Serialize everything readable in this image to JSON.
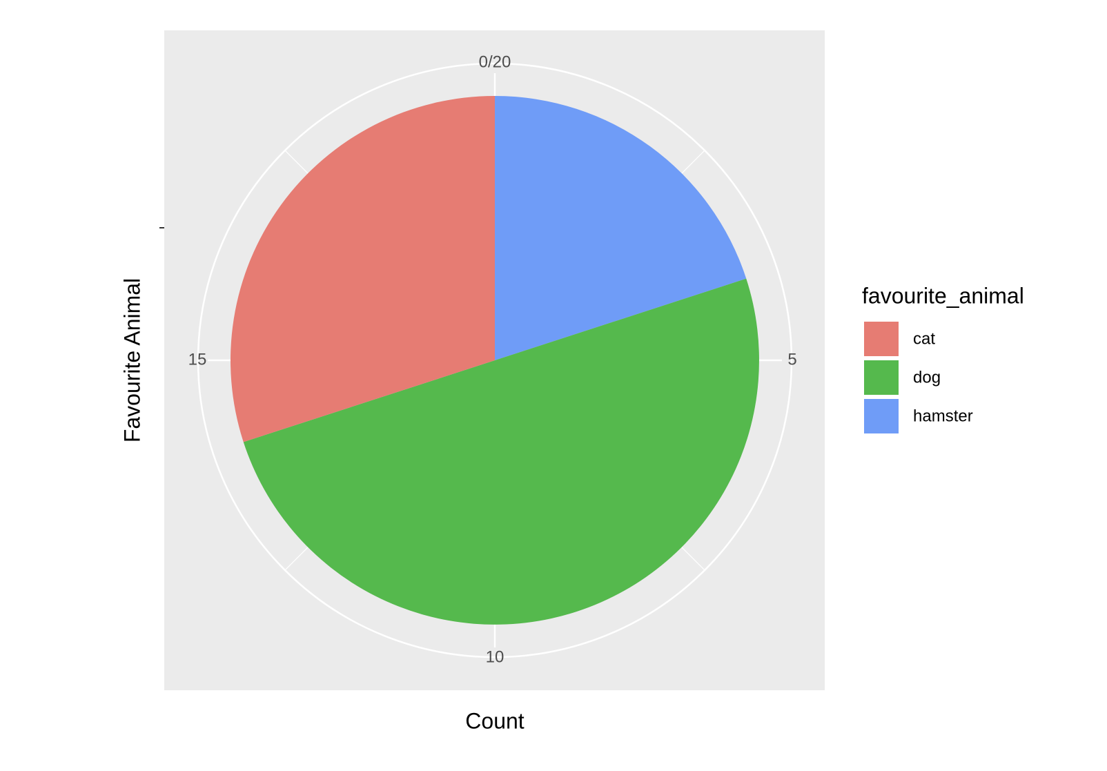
{
  "chart_data": {
    "type": "pie",
    "x_label": "Count",
    "y_label": "Favourite Animal",
    "legend_title": "favourite_animal",
    "legend": "right",
    "categories": [
      "cat",
      "dog",
      "hamster"
    ],
    "values": [
      6,
      10,
      4
    ],
    "colors": [
      "#e67c73",
      "#55b94d",
      "#6f9cf7"
    ],
    "theta_lim": [
      0,
      20
    ],
    "theta_ticks": [
      {
        "value": 0,
        "label": "0/20"
      },
      5,
      10,
      15
    ],
    "theta_minor_ticks": [
      2.5,
      7.5,
      12.5,
      17.5
    ],
    "grid": true
  }
}
